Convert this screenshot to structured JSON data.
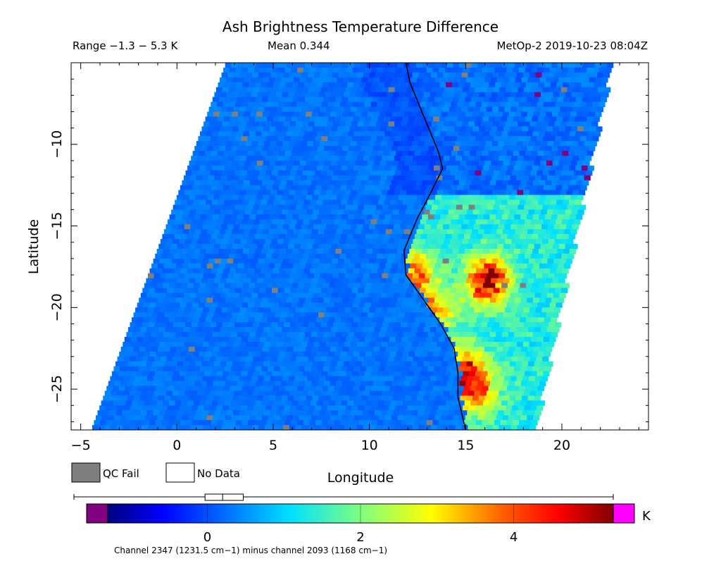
{
  "header": {
    "title": "Ash Brightness Temperature Difference",
    "range_text": "Range −1.3 − 5.3 K",
    "mean_text": "Mean 0.344",
    "satellite_text": "MetOp-2 2019-10-23 08:04Z"
  },
  "legend": {
    "qc_fail_label": "QC Fail",
    "no_data_label": "No Data",
    "qc_fail_color": "#7f7f7f",
    "no_data_color": "#ffffff"
  },
  "colorbar": {
    "unit": "K",
    "vmin": -1.3,
    "vmax": 5.3,
    "ticks": [
      0,
      2,
      4
    ],
    "tick_labels": [
      "0",
      "2",
      "4"
    ],
    "under_color": "#800080",
    "over_color": "#ff00ff",
    "boxplot": {
      "whisker_low": -1.3,
      "q1": -0.03,
      "median": 0.2,
      "q3": 0.47,
      "whisker_high": 5.3
    }
  },
  "footnote": "Channel 2347 (1231.5 cm−1) minus channel 2093 (1168 cm−1)",
  "chart_data": {
    "type": "heatmap",
    "title": "Ash Brightness Temperature Difference",
    "xlabel": "Longitude",
    "ylabel": "Latitude",
    "xlim": [
      -5.5,
      24.5
    ],
    "ylim": [
      -27.5,
      -5
    ],
    "xticks": [
      -5,
      0,
      5,
      10,
      15,
      20
    ],
    "xtick_labels": [
      "−5",
      "0",
      "5",
      "10",
      "15",
      "20"
    ],
    "yticks": [
      -10,
      -15,
      -20,
      -25
    ],
    "ytick_labels": [
      "−10",
      "−15",
      "−20",
      "−25"
    ],
    "swath": {
      "top_lon_west": 2.5,
      "top_lon_east": 22.5,
      "bottom_lon_west": -4.5,
      "bottom_lon_east": 18.5
    },
    "coastline": [
      [
        11.9,
        -5
      ],
      [
        12.1,
        -6.2
      ],
      [
        12.9,
        -8.5
      ],
      [
        13.6,
        -10.5
      ],
      [
        13.8,
        -11.5
      ],
      [
        13.0,
        -13.4
      ],
      [
        12.5,
        -14.5
      ],
      [
        11.8,
        -16.5
      ],
      [
        11.9,
        -18
      ],
      [
        12.8,
        -19.5
      ],
      [
        13.7,
        -21
      ],
      [
        14.4,
        -22.5
      ],
      [
        14.6,
        -24
      ],
      [
        14.6,
        -25.5
      ],
      [
        15.0,
        -27.5
      ]
    ],
    "hotspots": [
      {
        "lon": 16.0,
        "lat": -18.2,
        "value": 5.0
      },
      {
        "lon": 12.0,
        "lat": -17.8,
        "value": 3.8
      },
      {
        "lon": 15.3,
        "lat": -24.8,
        "value": 4.0
      },
      {
        "lon": 14.6,
        "lat": -23.5,
        "value": 3.5
      },
      {
        "lon": 13.1,
        "lat": -20.0,
        "value": 3.4
      }
    ],
    "background_value": 0.34
  }
}
